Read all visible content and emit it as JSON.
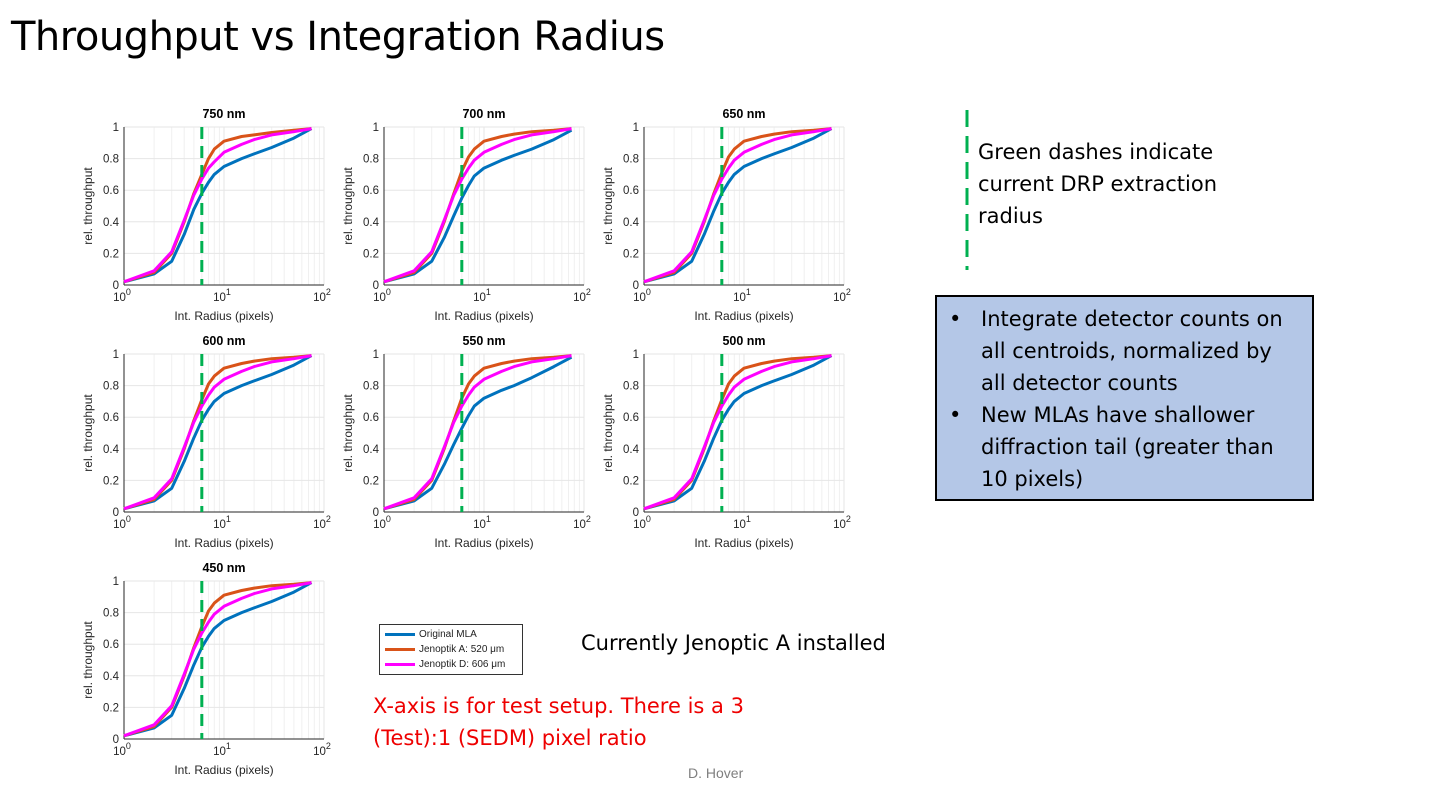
{
  "slide": {
    "title": "Throughput vs Integration Radius",
    "footer": "D. Hover",
    "dash_note": "Green dashes indicate current DRP extraction radius",
    "bullets": [
      "Integrate detector counts on all centroids, normalized by all detector counts",
      "New MLAs have shallower diffraction tail (greater than 10 pixels)"
    ],
    "installed_note": "Currently Jenoptic A installed",
    "xaxis_note": "X-axis is for test setup. There is a 3 (Test):1 (SEDM) pixel ratio"
  },
  "colors": {
    "original": "#0072bd",
    "jenoptik_a": "#d95319",
    "jenoptik_d": "#ff00ff",
    "drp_dash": "#00b050",
    "grid": "#e6e6e6"
  },
  "chart_data": [
    {
      "type": "line",
      "title": "750 nm",
      "xscale": "log",
      "xlim": [
        1,
        100
      ],
      "ylim": [
        0,
        1
      ],
      "xlabel": "Int. Radius (pixels)",
      "ylabel": "rel. throughput",
      "drp_radius": 6,
      "series": [
        {
          "name": "Original MLA",
          "x": [
            1,
            2,
            3,
            4,
            5,
            6,
            7,
            8,
            10,
            15,
            20,
            30,
            50,
            75
          ],
          "y": [
            0.02,
            0.07,
            0.15,
            0.32,
            0.48,
            0.58,
            0.65,
            0.7,
            0.75,
            0.8,
            0.83,
            0.87,
            0.93,
            0.99
          ]
        },
        {
          "name": "Jenoptik A: 520 μm",
          "x": [
            1,
            2,
            3,
            4,
            5,
            6,
            7,
            8,
            10,
            15,
            20,
            30,
            50,
            75
          ],
          "y": [
            0.02,
            0.08,
            0.2,
            0.4,
            0.58,
            0.7,
            0.8,
            0.86,
            0.91,
            0.94,
            0.95,
            0.965,
            0.98,
            0.99
          ]
        },
        {
          "name": "Jenoptik D: 606 μm",
          "x": [
            1,
            2,
            3,
            4,
            5,
            6,
            7,
            8,
            10,
            15,
            20,
            30,
            50,
            75
          ],
          "y": [
            0.02,
            0.09,
            0.21,
            0.41,
            0.57,
            0.67,
            0.74,
            0.78,
            0.84,
            0.89,
            0.92,
            0.95,
            0.97,
            0.99
          ]
        }
      ]
    },
    {
      "type": "line",
      "title": "700 nm",
      "xscale": "log",
      "xlim": [
        1,
        100
      ],
      "ylim": [
        0,
        1
      ],
      "xlabel": "Int. Radius (pixels)",
      "ylabel": "rel. throughput",
      "drp_radius": 6,
      "series": [
        {
          "name": "Original MLA",
          "x": [
            1,
            2,
            3,
            4,
            5,
            6,
            7,
            8,
            10,
            15,
            20,
            30,
            50,
            75
          ],
          "y": [
            0.02,
            0.07,
            0.15,
            0.3,
            0.44,
            0.55,
            0.63,
            0.69,
            0.74,
            0.79,
            0.82,
            0.86,
            0.92,
            0.98
          ]
        },
        {
          "name": "Jenoptik A: 520 μm",
          "x": [
            1,
            2,
            3,
            4,
            5,
            6,
            7,
            8,
            10,
            15,
            20,
            30,
            50,
            75
          ],
          "y": [
            0.02,
            0.08,
            0.2,
            0.4,
            0.58,
            0.72,
            0.81,
            0.86,
            0.91,
            0.94,
            0.955,
            0.97,
            0.98,
            0.99
          ]
        },
        {
          "name": "Jenoptik D: 606 μm",
          "x": [
            1,
            2,
            3,
            4,
            5,
            6,
            7,
            8,
            10,
            15,
            20,
            30,
            50,
            75
          ],
          "y": [
            0.02,
            0.09,
            0.21,
            0.41,
            0.57,
            0.67,
            0.74,
            0.79,
            0.84,
            0.89,
            0.92,
            0.95,
            0.97,
            0.99
          ]
        }
      ]
    },
    {
      "type": "line",
      "title": "650 nm",
      "xscale": "log",
      "xlim": [
        1,
        100
      ],
      "ylim": [
        0,
        1
      ],
      "xlabel": "Int. Radius (pixels)",
      "ylabel": "rel. throughput",
      "drp_radius": 6,
      "series": [
        {
          "name": "Original MLA",
          "x": [
            1,
            2,
            3,
            4,
            5,
            6,
            7,
            8,
            10,
            15,
            20,
            30,
            50,
            75
          ],
          "y": [
            0.02,
            0.07,
            0.15,
            0.32,
            0.47,
            0.58,
            0.65,
            0.7,
            0.75,
            0.8,
            0.83,
            0.87,
            0.93,
            0.99
          ]
        },
        {
          "name": "Jenoptik A: 520 μm",
          "x": [
            1,
            2,
            3,
            4,
            5,
            6,
            7,
            8,
            10,
            15,
            20,
            30,
            50,
            75
          ],
          "y": [
            0.02,
            0.08,
            0.2,
            0.4,
            0.58,
            0.71,
            0.81,
            0.86,
            0.91,
            0.94,
            0.955,
            0.97,
            0.98,
            0.99
          ]
        },
        {
          "name": "Jenoptik D: 606 μm",
          "x": [
            1,
            2,
            3,
            4,
            5,
            6,
            7,
            8,
            10,
            15,
            20,
            30,
            50,
            75
          ],
          "y": [
            0.02,
            0.09,
            0.21,
            0.41,
            0.57,
            0.67,
            0.74,
            0.79,
            0.84,
            0.89,
            0.92,
            0.95,
            0.97,
            0.99
          ]
        }
      ]
    },
    {
      "type": "line",
      "title": "600 nm",
      "xscale": "log",
      "xlim": [
        1,
        100
      ],
      "ylim": [
        0,
        1
      ],
      "xlabel": "Int. Radius (pixels)",
      "ylabel": "rel. throughput",
      "drp_radius": 6,
      "series": [
        {
          "name": "Original MLA",
          "x": [
            1,
            2,
            3,
            4,
            5,
            6,
            7,
            8,
            10,
            15,
            20,
            30,
            50,
            75
          ],
          "y": [
            0.02,
            0.07,
            0.15,
            0.32,
            0.47,
            0.58,
            0.65,
            0.7,
            0.75,
            0.8,
            0.83,
            0.87,
            0.93,
            0.99
          ]
        },
        {
          "name": "Jenoptik A: 520 μm",
          "x": [
            1,
            2,
            3,
            4,
            5,
            6,
            7,
            8,
            10,
            15,
            20,
            30,
            50,
            75
          ],
          "y": [
            0.02,
            0.08,
            0.2,
            0.4,
            0.58,
            0.71,
            0.81,
            0.86,
            0.91,
            0.94,
            0.955,
            0.97,
            0.98,
            0.99
          ]
        },
        {
          "name": "Jenoptik D: 606 μm",
          "x": [
            1,
            2,
            3,
            4,
            5,
            6,
            7,
            8,
            10,
            15,
            20,
            30,
            50,
            75
          ],
          "y": [
            0.02,
            0.09,
            0.21,
            0.41,
            0.57,
            0.67,
            0.74,
            0.79,
            0.84,
            0.89,
            0.92,
            0.95,
            0.97,
            0.99
          ]
        }
      ]
    },
    {
      "type": "line",
      "title": "550 nm",
      "xscale": "log",
      "xlim": [
        1,
        100
      ],
      "ylim": [
        0,
        1
      ],
      "xlabel": "Int. Radius (pixels)",
      "ylabel": "rel. throughput",
      "drp_radius": 6,
      "series": [
        {
          "name": "Original MLA",
          "x": [
            1,
            2,
            3,
            4,
            5,
            6,
            7,
            8,
            10,
            15,
            20,
            30,
            50,
            75
          ],
          "y": [
            0.02,
            0.07,
            0.15,
            0.3,
            0.43,
            0.53,
            0.61,
            0.67,
            0.72,
            0.77,
            0.8,
            0.85,
            0.92,
            0.98
          ]
        },
        {
          "name": "Jenoptik A: 520 μm",
          "x": [
            1,
            2,
            3,
            4,
            5,
            6,
            7,
            8,
            10,
            15,
            20,
            30,
            50,
            75
          ],
          "y": [
            0.02,
            0.08,
            0.2,
            0.4,
            0.58,
            0.72,
            0.81,
            0.86,
            0.91,
            0.94,
            0.955,
            0.97,
            0.98,
            0.99
          ]
        },
        {
          "name": "Jenoptik D: 606 μm",
          "x": [
            1,
            2,
            3,
            4,
            5,
            6,
            7,
            8,
            10,
            15,
            20,
            30,
            50,
            75
          ],
          "y": [
            0.02,
            0.09,
            0.21,
            0.41,
            0.57,
            0.67,
            0.74,
            0.79,
            0.84,
            0.89,
            0.92,
            0.95,
            0.97,
            0.99
          ]
        }
      ]
    },
    {
      "type": "line",
      "title": "500 nm",
      "xscale": "log",
      "xlim": [
        1,
        100
      ],
      "ylim": [
        0,
        1
      ],
      "xlabel": "Int. Radius (pixels)",
      "ylabel": "rel. throughput",
      "drp_radius": 6,
      "series": [
        {
          "name": "Original MLA",
          "x": [
            1,
            2,
            3,
            4,
            5,
            6,
            7,
            8,
            10,
            15,
            20,
            30,
            50,
            75
          ],
          "y": [
            0.02,
            0.07,
            0.15,
            0.32,
            0.47,
            0.58,
            0.65,
            0.7,
            0.75,
            0.8,
            0.83,
            0.87,
            0.93,
            0.99
          ]
        },
        {
          "name": "Jenoptik A: 520 μm",
          "x": [
            1,
            2,
            3,
            4,
            5,
            6,
            7,
            8,
            10,
            15,
            20,
            30,
            50,
            75
          ],
          "y": [
            0.02,
            0.08,
            0.2,
            0.4,
            0.58,
            0.71,
            0.81,
            0.86,
            0.91,
            0.94,
            0.955,
            0.97,
            0.98,
            0.99
          ]
        },
        {
          "name": "Jenoptik D: 606 μm",
          "x": [
            1,
            2,
            3,
            4,
            5,
            6,
            7,
            8,
            10,
            15,
            20,
            30,
            50,
            75
          ],
          "y": [
            0.02,
            0.09,
            0.21,
            0.41,
            0.57,
            0.67,
            0.74,
            0.79,
            0.84,
            0.89,
            0.92,
            0.95,
            0.97,
            0.99
          ]
        }
      ]
    },
    {
      "type": "line",
      "title": "450 nm",
      "xscale": "log",
      "xlim": [
        1,
        100
      ],
      "ylim": [
        0,
        1
      ],
      "xlabel": "Int. Radius (pixels)",
      "ylabel": "rel. throughput",
      "drp_radius": 6,
      "series": [
        {
          "name": "Original MLA",
          "x": [
            1,
            2,
            3,
            4,
            5,
            6,
            7,
            8,
            10,
            15,
            20,
            30,
            50,
            75
          ],
          "y": [
            0.02,
            0.07,
            0.15,
            0.32,
            0.47,
            0.58,
            0.65,
            0.7,
            0.75,
            0.8,
            0.83,
            0.87,
            0.93,
            0.99
          ]
        },
        {
          "name": "Jenoptik A: 520 μm",
          "x": [
            1,
            2,
            3,
            4,
            5,
            6,
            7,
            8,
            10,
            15,
            20,
            30,
            50,
            75
          ],
          "y": [
            0.02,
            0.08,
            0.2,
            0.4,
            0.58,
            0.71,
            0.81,
            0.86,
            0.91,
            0.94,
            0.955,
            0.97,
            0.98,
            0.99
          ]
        },
        {
          "name": "Jenoptik D: 606 μm",
          "x": [
            1,
            2,
            3,
            4,
            5,
            6,
            7,
            8,
            10,
            15,
            20,
            30,
            50,
            75
          ],
          "y": [
            0.02,
            0.09,
            0.21,
            0.41,
            0.57,
            0.67,
            0.74,
            0.79,
            0.84,
            0.89,
            0.92,
            0.95,
            0.97,
            0.99
          ]
        }
      ]
    }
  ],
  "legend": {
    "items": [
      "Original MLA",
      "Jenoptik A: 520 μm",
      "Jenoptik D: 606 μm"
    ]
  }
}
